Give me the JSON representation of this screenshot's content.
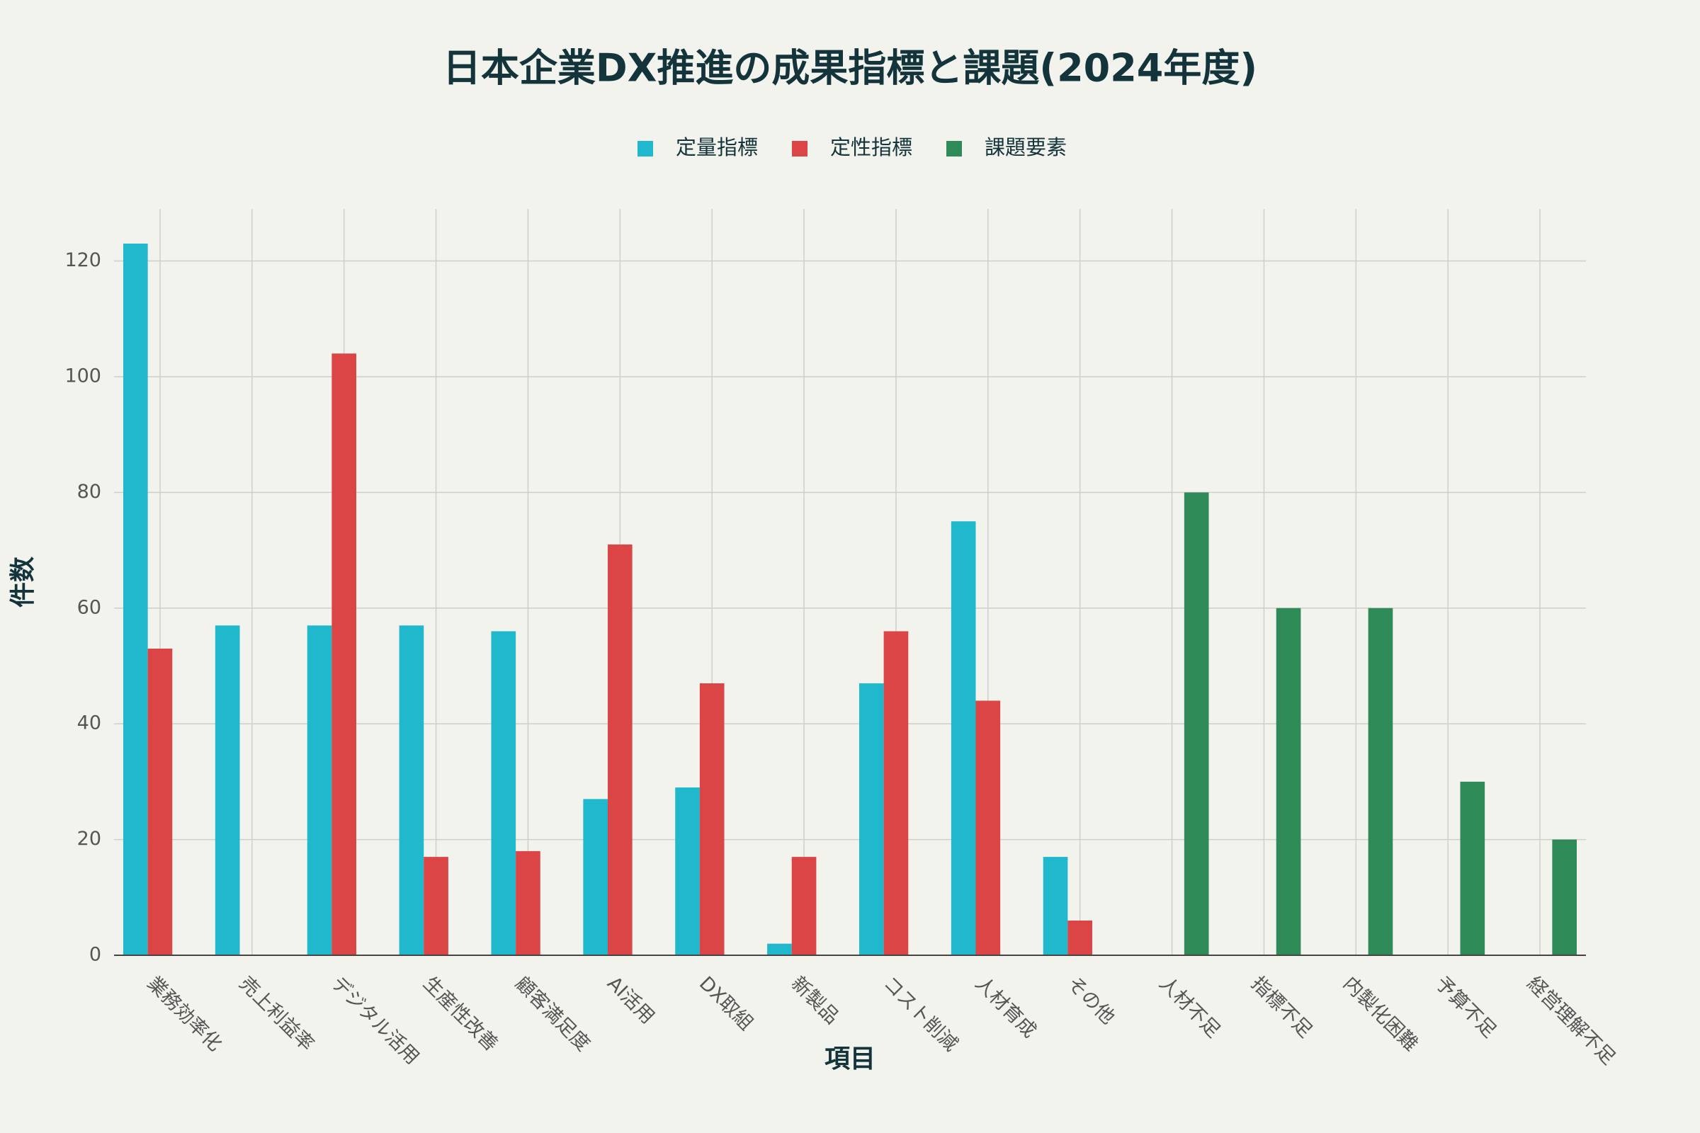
{
  "chart_data": {
    "type": "bar",
    "title": "日本企業DX推進の成果指標と課題(2024年度)",
    "x_label": "項目",
    "y_label": "件数",
    "categories": [
      "業務効率化",
      "売上利益率",
      "デジタル活用",
      "生産性改善",
      "顧客満足度",
      "AI活用",
      "DX取組",
      "新製品",
      "コスト削減",
      "人材育成",
      "その他",
      "人材不足",
      "指標不足",
      "内製化困難",
      "予算不足",
      "経営理解不足"
    ],
    "series": [
      {
        "name": "定量指標",
        "color": "#1FB8CD",
        "values": [
          123,
          57,
          57,
          57,
          56,
          27,
          29,
          2,
          47,
          75,
          17,
          null,
          null,
          null,
          null,
          null
        ]
      },
      {
        "name": "定性指標",
        "color": "#DB4545",
        "values": [
          53,
          null,
          104,
          17,
          18,
          71,
          47,
          17,
          56,
          44,
          6,
          null,
          null,
          null,
          null,
          null
        ]
      },
      {
        "name": "課題要素",
        "color": "#2E8B57",
        "values": [
          null,
          null,
          null,
          null,
          null,
          null,
          null,
          null,
          null,
          null,
          null,
          80,
          60,
          60,
          30,
          20
        ]
      }
    ],
    "ylim": [
      0,
      129
    ],
    "yticks": [
      0,
      20,
      40,
      60,
      80,
      100,
      120
    ],
    "grid": true,
    "legend": "top"
  }
}
